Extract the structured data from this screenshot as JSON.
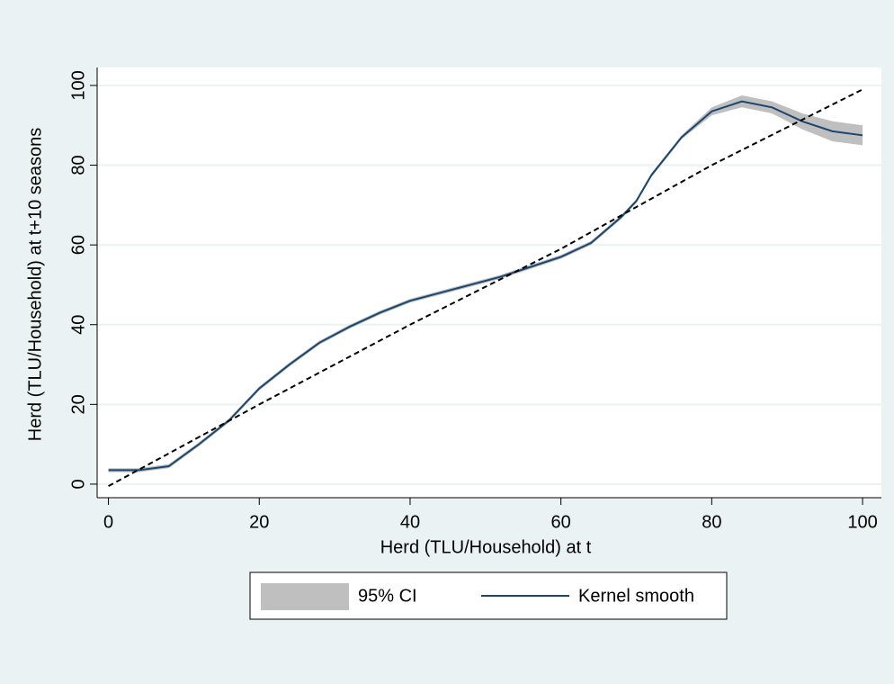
{
  "chart_data": {
    "type": "line",
    "xlabel": "Herd (TLU/Household) at t",
    "ylabel": "Herd (TLU/Household) at t+10 seasons",
    "x": [
      0,
      4,
      8,
      12,
      16,
      20,
      24,
      28,
      32,
      36,
      40,
      44,
      48,
      52,
      56,
      60,
      64,
      68,
      70,
      72,
      76,
      80,
      84,
      88,
      92,
      96,
      100
    ],
    "series": [
      {
        "name": "95% CI",
        "color": "#bfbfbf",
        "style": "band",
        "lower": [
          3,
          3,
          4,
          9.5,
          15.5,
          23.5,
          29.5,
          35,
          39,
          42.5,
          45.5,
          47.5,
          49.5,
          51.5,
          54,
          56.5,
          60,
          66.5,
          70.5,
          77,
          86.5,
          92.5,
          94.5,
          93,
          89,
          86,
          85
        ],
        "upper": [
          4,
          4,
          5,
          10.5,
          16.5,
          24.5,
          30.5,
          36,
          40,
          43.5,
          46.5,
          48.5,
          50.5,
          52.5,
          55,
          57.5,
          61,
          67.5,
          71.5,
          78,
          87.5,
          94.5,
          97.5,
          96,
          93,
          91,
          90
        ]
      },
      {
        "name": "Kernel smooth",
        "color": "#1a476f",
        "style": "solid",
        "values": [
          3.5,
          3.5,
          4.5,
          10,
          16,
          24,
          30,
          35.5,
          39.5,
          43,
          46,
          48,
          50,
          52,
          54.5,
          57,
          60.5,
          67,
          71,
          77.5,
          87,
          93.5,
          96,
          94.5,
          91,
          88.5,
          87.5
        ]
      },
      {
        "color": "#000000",
        "style": "dashed",
        "x": [
          0,
          20,
          40,
          60,
          80,
          100
        ],
        "values": [
          -0.5,
          20,
          40,
          59,
          80,
          99
        ]
      }
    ],
    "xlim": [
      -1.5,
      102.5
    ],
    "ylim": [
      -3.4,
      104.5
    ],
    "xticks": [
      0,
      20,
      40,
      60,
      80,
      100
    ],
    "yticks": [
      0,
      20,
      40,
      60,
      80,
      100
    ],
    "grid": true,
    "legend": "bottom"
  }
}
